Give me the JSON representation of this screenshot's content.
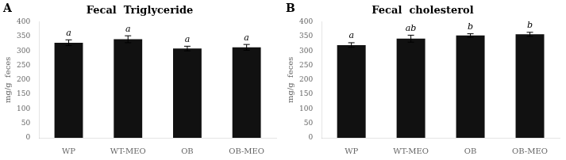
{
  "chart_data": [
    {
      "type": "bar",
      "panel_label": "A",
      "title": "Fecal  Triglyceride",
      "categories": [
        "WP",
        "WT-MEO",
        "OB",
        "OB-MEO"
      ],
      "values": [
        328,
        340,
        308,
        312
      ],
      "errors": [
        10,
        12,
        8,
        10
      ],
      "annotations": [
        "a",
        "a",
        "a",
        "a"
      ],
      "ylabel": "mg/g  feces",
      "color": "#111111",
      "ylim": [
        0,
        400
      ],
      "yticks": [
        0,
        50,
        100,
        150,
        200,
        250,
        300,
        350,
        400
      ],
      "grid": false
    },
    {
      "type": "bar",
      "panel_label": "B",
      "title": "Fecal  cholesterol",
      "categories": [
        "WP",
        "WT-MEO",
        "OB",
        "OB-MEO"
      ],
      "values": [
        320,
        342,
        353,
        357
      ],
      "errors": [
        8,
        12,
        6,
        7
      ],
      "annotations": [
        "a",
        "ab",
        "b",
        "b"
      ],
      "ylabel": "mg/g  feces",
      "color": "#111111",
      "ylim": [
        0,
        400
      ],
      "yticks": [
        0,
        50,
        100,
        150,
        200,
        250,
        300,
        350,
        400
      ],
      "grid": false
    }
  ]
}
